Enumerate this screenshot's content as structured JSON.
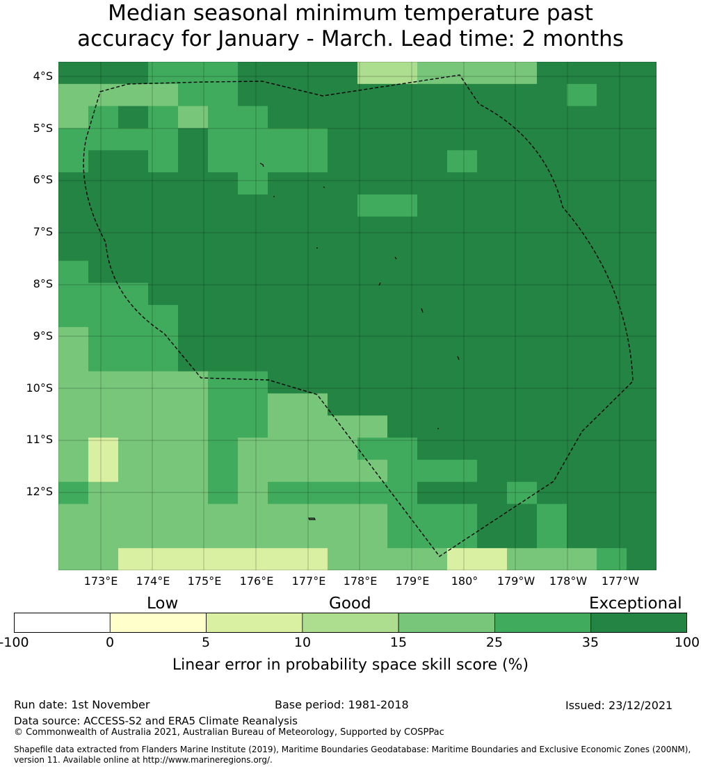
{
  "title": {
    "line1": "Median seasonal minimum temperature past",
    "line2": "accuracy for January - March. Lead time: 2 months"
  },
  "map": {
    "lat_labels": [
      "4°S",
      "5°S",
      "6°S",
      "7°S",
      "8°S",
      "9°S",
      "10°S",
      "11°S",
      "12°S"
    ],
    "lon_labels": [
      "173°E",
      "174°E",
      "175°E",
      "176°E",
      "177°E",
      "178°E",
      "179°E",
      "180°",
      "179°W",
      "178°W",
      "177°W"
    ],
    "grid_rows": [
      "55544455556677778555",
      "33334455555555555455",
      "34543445555555555555",
      "44445444455555555555",
      "45545444455554555555",
      "55555545555555555555",
      "55555555554455555555",
      "55555555555555555555",
      "55555555555555555555",
      "45555555555555555555",
      "44455555555555555555",
      "44445555555555555555",
      "34445555555555555555",
      "34445555555555555555",
      "33333445555555555555",
      "33333443355555555555",
      "33333443333555555555",
      "32333433334455555555",
      "32333433333444555555",
      "43333434444455545555",
      "33333333333444554555",
      "33333333333444554555",
      "33222222233332233345"
    ],
    "colors": {
      "0": "#ffffff",
      "1": "#ffffcc",
      "2": "#d9f0a3",
      "3": "#78c679",
      "4": "#41ab5d",
      "5": "#238443",
      "6": "#addd8e",
      "7": "#78c679",
      "8": "#238443"
    }
  },
  "legend": {
    "categories": [
      "Low",
      "Good",
      "Exceptional"
    ],
    "ticks": [
      "-100",
      "0",
      "5",
      "10",
      "15",
      "25",
      "35",
      "100"
    ],
    "bin_colors": [
      "#ffffff",
      "#ffffcc",
      "#d9f0a3",
      "#addd8e",
      "#78c679",
      "#41ab5d",
      "#238443"
    ],
    "label": "Linear error in probability space skill score (%)"
  },
  "footer": {
    "run_date": "Run date: 1st November",
    "base_period": "Base period: 1981-2018",
    "issued": "Issued: 23/12/2021",
    "data_source": "Data source: ACCESS-S2 and ERA5 Climate Reanalysis",
    "copyright": "© Commonwealth of Australia 2021, Australian Bureau of Meteorology, Supported by COSPPac",
    "shapefile_line1": "Shapefile data extracted from Flanders Marine Institute (2019), Maritime Boundaries Geodatabase: Maritime Boundaries and Exclusive Economic Zones (200NM),",
    "shapefile_line2": "version 11. Available online at http://www.marineregions.org/."
  }
}
